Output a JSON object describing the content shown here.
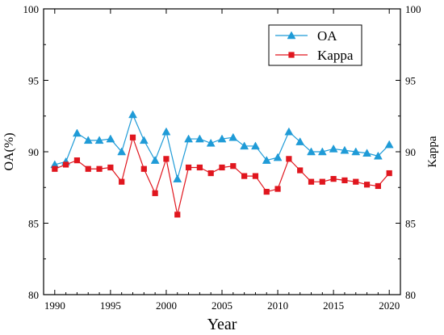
{
  "chart_data": {
    "type": "line",
    "title": "",
    "xlabel": "Year",
    "ylabel": "OA(%)",
    "ylabel_right": "Kappa",
    "xlim": [
      1989,
      2021
    ],
    "ylim": [
      80,
      100
    ],
    "x_ticks": [
      1990,
      1995,
      2000,
      2005,
      2010,
      2015,
      2020
    ],
    "y_ticks": [
      80,
      85,
      90,
      95,
      100
    ],
    "y_ticks_right": [
      80,
      85,
      90,
      95,
      100
    ],
    "grid": false,
    "legend_position": "top-right",
    "x": [
      1990,
      1991,
      1992,
      1993,
      1994,
      1995,
      1996,
      1997,
      1998,
      1999,
      2000,
      2001,
      2002,
      2003,
      2004,
      2005,
      2006,
      2007,
      2008,
      2009,
      2010,
      2011,
      2012,
      2013,
      2014,
      2015,
      2016,
      2017,
      2018,
      2019,
      2020
    ],
    "series": [
      {
        "name": "OA",
        "axis": "left",
        "color": "#1f9bd7",
        "marker": "triangle",
        "values": [
          89.1,
          89.3,
          91.3,
          90.8,
          90.8,
          90.9,
          90.0,
          92.6,
          90.8,
          89.4,
          91.4,
          88.1,
          90.9,
          90.9,
          90.6,
          90.9,
          91.0,
          90.4,
          90.4,
          89.4,
          89.6,
          91.4,
          90.7,
          90.0,
          90.0,
          90.2,
          90.1,
          90.0,
          89.9,
          89.7,
          90.5
        ]
      },
      {
        "name": "Kappa",
        "axis": "right",
        "color": "#e0161e",
        "marker": "square",
        "values": [
          88.8,
          89.1,
          89.4,
          88.8,
          88.8,
          88.9,
          87.9,
          91.0,
          88.8,
          87.1,
          89.5,
          85.6,
          88.9,
          88.9,
          88.5,
          88.9,
          89.0,
          88.3,
          88.3,
          87.2,
          87.4,
          89.5,
          88.7,
          87.9,
          87.9,
          88.1,
          88.0,
          87.9,
          87.7,
          87.6,
          88.5
        ]
      }
    ]
  }
}
